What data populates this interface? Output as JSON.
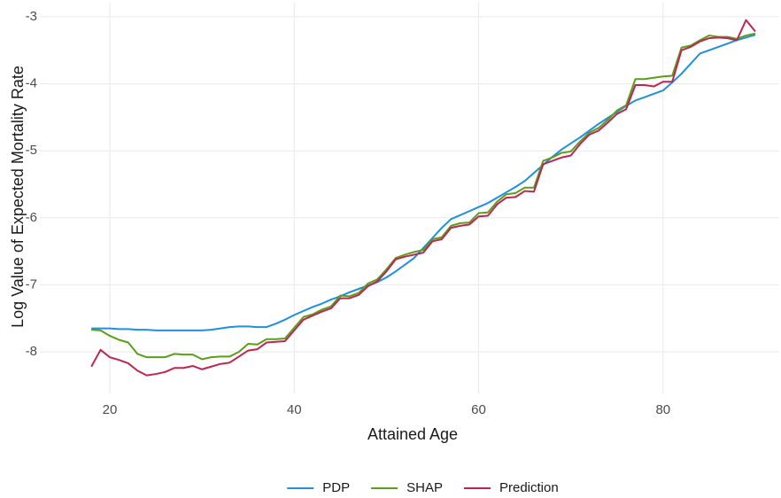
{
  "chart_data": {
    "type": "line",
    "xlabel": "Attained Age",
    "ylabel": "Log Value of Expected Mortality Rate",
    "x": [
      18,
      19,
      20,
      21,
      22,
      23,
      24,
      25,
      26,
      27,
      28,
      29,
      30,
      31,
      32,
      33,
      34,
      35,
      36,
      37,
      38,
      39,
      40,
      41,
      42,
      43,
      44,
      45,
      46,
      47,
      48,
      49,
      50,
      51,
      52,
      53,
      54,
      55,
      56,
      57,
      58,
      59,
      60,
      61,
      62,
      63,
      64,
      65,
      66,
      67,
      68,
      69,
      70,
      71,
      72,
      73,
      74,
      75,
      76,
      77,
      78,
      79,
      80,
      81,
      82,
      83,
      84,
      85,
      86,
      87,
      88,
      89,
      90
    ],
    "series": [
      {
        "name": "PDP",
        "color": "#1f8fe0",
        "values": [
          -7.65,
          -7.65,
          -7.65,
          -7.66,
          -7.66,
          -7.67,
          -7.67,
          -7.68,
          -7.68,
          -7.68,
          -7.68,
          -7.68,
          -7.68,
          -7.67,
          -7.65,
          -7.63,
          -7.62,
          -7.62,
          -7.63,
          -7.63,
          -7.58,
          -7.52,
          -7.45,
          -7.39,
          -7.33,
          -7.28,
          -7.22,
          -7.17,
          -7.11,
          -7.06,
          -7.01,
          -6.96,
          -6.89,
          -6.8,
          -6.7,
          -6.6,
          -6.45,
          -6.3,
          -6.15,
          -6.02,
          -5.96,
          -5.9,
          -5.84,
          -5.78,
          -5.7,
          -5.62,
          -5.54,
          -5.45,
          -5.33,
          -5.21,
          -5.09,
          -4.98,
          -4.89,
          -4.8,
          -4.7,
          -4.6,
          -4.51,
          -4.42,
          -4.33,
          -4.25,
          -4.2,
          -4.15,
          -4.1,
          -3.98,
          -3.85,
          -3.7,
          -3.55,
          -3.5,
          -3.45,
          -3.4,
          -3.35,
          -3.31,
          -3.27
        ]
      },
      {
        "name": "SHAP",
        "color": "#5a9e1a",
        "values": [
          -7.67,
          -7.68,
          -7.76,
          -7.82,
          -7.86,
          -8.03,
          -8.08,
          -8.08,
          -8.08,
          -8.03,
          -8.04,
          -8.04,
          -8.11,
          -8.08,
          -8.07,
          -8.07,
          -8.0,
          -7.88,
          -7.89,
          -7.81,
          -7.81,
          -7.8,
          -7.64,
          -7.48,
          -7.44,
          -7.37,
          -7.32,
          -7.16,
          -7.17,
          -7.12,
          -6.98,
          -6.92,
          -6.77,
          -6.6,
          -6.55,
          -6.51,
          -6.48,
          -6.32,
          -6.29,
          -6.12,
          -6.08,
          -6.07,
          -5.93,
          -5.92,
          -5.76,
          -5.65,
          -5.63,
          -5.55,
          -5.55,
          -5.15,
          -5.1,
          -5.03,
          -5.01,
          -4.86,
          -4.73,
          -4.66,
          -4.54,
          -4.4,
          -4.32,
          -3.93,
          -3.93,
          -3.91,
          -3.89,
          -3.88,
          -3.46,
          -3.43,
          -3.35,
          -3.28,
          -3.3,
          -3.3,
          -3.33,
          -3.28,
          -3.25
        ]
      },
      {
        "name": "Prediction",
        "color": "#c0254f",
        "values": [
          -8.22,
          -7.97,
          -8.08,
          -8.12,
          -8.17,
          -8.28,
          -8.35,
          -8.33,
          -8.3,
          -8.24,
          -8.24,
          -8.21,
          -8.26,
          -8.22,
          -8.18,
          -8.16,
          -8.07,
          -7.98,
          -7.96,
          -7.86,
          -7.85,
          -7.84,
          -7.68,
          -7.52,
          -7.46,
          -7.4,
          -7.35,
          -7.2,
          -7.2,
          -7.15,
          -7.02,
          -6.95,
          -6.8,
          -6.62,
          -6.58,
          -6.55,
          -6.52,
          -6.35,
          -6.32,
          -6.15,
          -6.12,
          -6.1,
          -5.98,
          -5.97,
          -5.8,
          -5.7,
          -5.69,
          -5.6,
          -5.61,
          -5.2,
          -5.15,
          -5.1,
          -5.07,
          -4.9,
          -4.76,
          -4.7,
          -4.58,
          -4.45,
          -4.38,
          -4.02,
          -4.02,
          -4.04,
          -3.97,
          -3.97,
          -3.5,
          -3.45,
          -3.37,
          -3.32,
          -3.31,
          -3.32,
          -3.35,
          -3.05,
          -3.22
        ]
      }
    ],
    "xlim": [
      14.5,
      92.6
    ],
    "xticks": [
      20,
      40,
      60,
      80
    ],
    "ylim": [
      -8.62,
      -2.79
    ],
    "yticks": [
      -8,
      -7,
      -6,
      -5,
      -4,
      -3
    ],
    "grid": true,
    "legend": "bottom"
  }
}
